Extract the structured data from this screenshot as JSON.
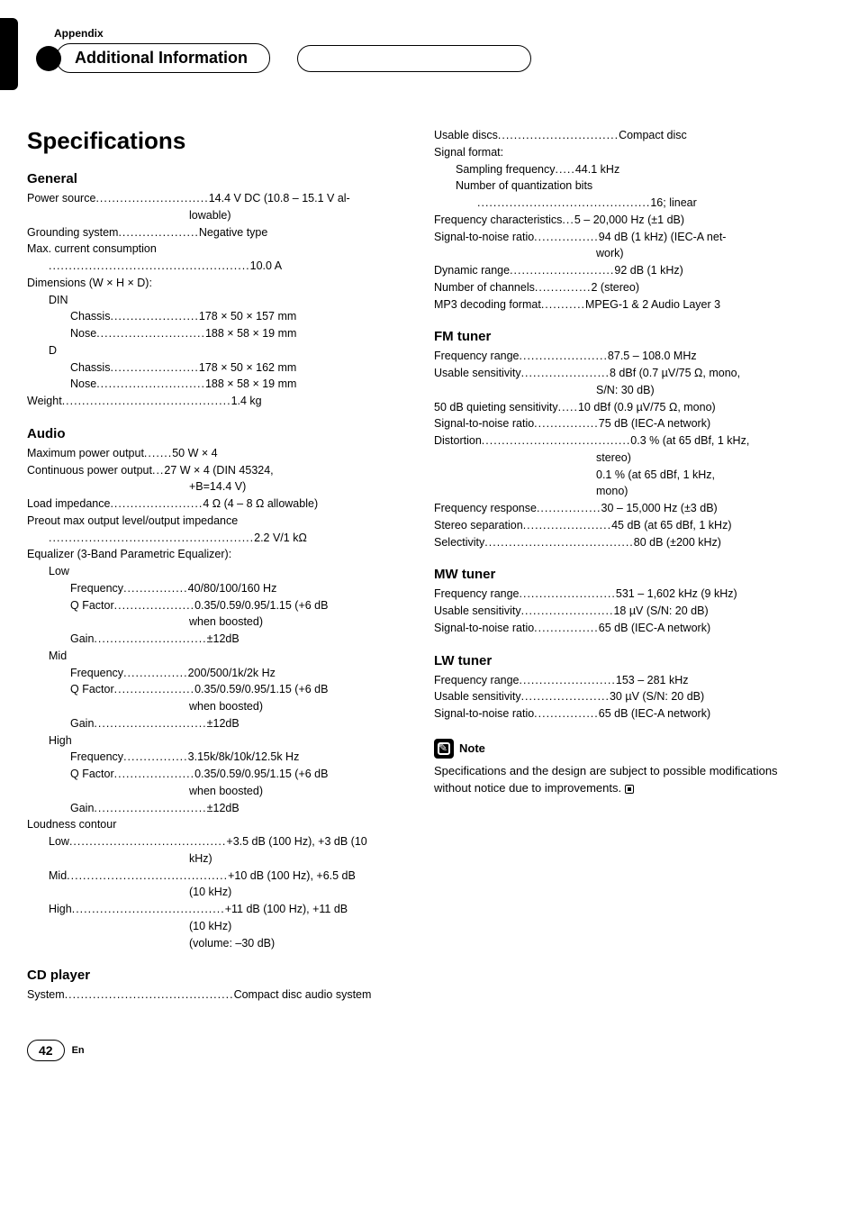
{
  "header": {
    "appendix": "Appendix",
    "title": "Additional Information"
  },
  "page_title": "Specifications",
  "left": {
    "general": {
      "heading": "General",
      "power_source_label": "Power source",
      "power_source_value": "14.4 V DC (10.8 – 15.1 V al-",
      "power_source_cont": "lowable)",
      "grounding_label": "Grounding system",
      "grounding_value": "Negative type",
      "max_current_label": "Max. current consumption",
      "max_current_value": "10.0 A",
      "dimensions_label": "Dimensions (W × H × D):",
      "din": "DIN",
      "din_chassis_label": "Chassis",
      "din_chassis_value": "178 × 50 × 157 mm",
      "din_nose_label": "Nose",
      "din_nose_value": "188 × 58 × 19 mm",
      "d": "D",
      "d_chassis_label": "Chassis",
      "d_chassis_value": "178 × 50 × 162 mm",
      "d_nose_label": "Nose",
      "d_nose_value": "188 × 58 × 19 mm",
      "weight_label": "Weight",
      "weight_value": "1.4 kg"
    },
    "audio": {
      "heading": "Audio",
      "max_power_label": "Maximum power output",
      "max_power_value": "50 W × 4",
      "cont_power_label": "Continuous power output",
      "cont_power_value": "27 W × 4 (DIN 45324,",
      "cont_power_cont": "+B=14.4 V)",
      "load_imp_label": "Load impedance",
      "load_imp_value": "4 Ω (4 – 8 Ω allowable)",
      "preout_label": "Preout max output level/output impedance",
      "preout_value": "2.2 V/1 kΩ",
      "eq_label": "Equalizer (3-Band Parametric Equalizer):",
      "low": "Low",
      "low_freq_label": "Frequency",
      "low_freq_value": "40/80/100/160 Hz",
      "low_q_label": "Q Factor",
      "low_q_value": "0.35/0.59/0.95/1.15 (+6 dB",
      "low_q_cont": "when boosted)",
      "low_gain_label": "Gain",
      "low_gain_value": "±12dB",
      "mid": "Mid",
      "mid_freq_label": "Frequency",
      "mid_freq_value": "200/500/1k/2k Hz",
      "mid_q_label": "Q Factor",
      "mid_q_value": "0.35/0.59/0.95/1.15 (+6 dB",
      "mid_q_cont": "when boosted)",
      "mid_gain_label": "Gain",
      "mid_gain_value": "±12dB",
      "high": "High",
      "high_freq_label": "Frequency",
      "high_freq_value": "3.15k/8k/10k/12.5k Hz",
      "high_q_label": "Q Factor",
      "high_q_value": "0.35/0.59/0.95/1.15 (+6 dB",
      "high_q_cont": "when boosted)",
      "high_gain_label": "Gain",
      "high_gain_value": "±12dB",
      "loudness_label": "Loudness contour",
      "loud_low_label": "Low",
      "loud_low_value": "+3.5 dB (100 Hz), +3 dB (10",
      "loud_low_cont": "kHz)",
      "loud_mid_label": "Mid",
      "loud_mid_value": "+10 dB (100 Hz), +6.5 dB",
      "loud_mid_cont": "(10 kHz)",
      "loud_high_label": "High",
      "loud_high_value": "+11 dB (100 Hz), +11 dB",
      "loud_high_cont1": "(10 kHz)",
      "loud_high_cont2": "(volume: –30 dB)"
    },
    "cd": {
      "heading": "CD player",
      "system_label": "System",
      "system_value": "Compact disc audio system"
    }
  },
  "right": {
    "cd_cont": {
      "usable_discs_label": "Usable discs",
      "usable_discs_value": "Compact disc",
      "signal_format": "Signal format:",
      "sampling_label": "Sampling frequency",
      "sampling_value": "44.1 kHz",
      "quant_label": "Number of quantization bits",
      "quant_value": "16; linear",
      "freq_char_label": "Frequency characteristics",
      "freq_char_value": "5 – 20,000 Hz (±1 dB)",
      "snr_label": "Signal-to-noise ratio",
      "snr_value": "94 dB (1 kHz) (IEC-A net-",
      "snr_cont": "work)",
      "dyn_label": "Dynamic range",
      "dyn_value": "92 dB (1 kHz)",
      "channels_label": "Number of channels",
      "channels_value": "2 (stereo)",
      "mp3_label": "MP3 decoding format",
      "mp3_value": "MPEG-1 & 2 Audio Layer 3"
    },
    "fm": {
      "heading": "FM tuner",
      "freq_range_label": "Frequency range",
      "freq_range_value": "87.5 – 108.0 MHz",
      "sens_label": "Usable sensitivity",
      "sens_value": "8 dBf (0.7 µV/75 Ω, mono,",
      "sens_cont": "S/N: 30 dB)",
      "quiet_label": "50 dB quieting sensitivity",
      "quiet_value": "10 dBf (0.9 µV/75 Ω, mono)",
      "snr_label": "Signal-to-noise ratio",
      "snr_value": "75 dB (IEC-A network)",
      "dist_label": "Distortion",
      "dist_value": "0.3 % (at 65 dBf, 1 kHz,",
      "dist_cont1": "stereo)",
      "dist_cont2": "0.1 % (at 65 dBf, 1 kHz,",
      "dist_cont3": "mono)",
      "resp_label": "Frequency response",
      "resp_value": "30 – 15,000 Hz (±3 dB)",
      "sep_label": "Stereo separation",
      "sep_value": "45 dB (at 65 dBf, 1 kHz)",
      "sel_label": "Selectivity",
      "sel_value": "80 dB (±200 kHz)"
    },
    "mw": {
      "heading": "MW tuner",
      "freq_label": "Frequency range",
      "freq_value": "531 – 1,602 kHz (9 kHz)",
      "sens_label": "Usable sensitivity",
      "sens_value": "18 µV (S/N: 20 dB)",
      "snr_label": "Signal-to-noise ratio",
      "snr_value": "65 dB (IEC-A network)"
    },
    "lw": {
      "heading": "LW tuner",
      "freq_label": "Frequency range",
      "freq_value": "153 – 281 kHz",
      "sens_label": "Usable sensitivity",
      "sens_value": "30 µV (S/N: 20 dB)",
      "snr_label": "Signal-to-noise ratio",
      "snr_value": "65 dB (IEC-A network)"
    },
    "note": {
      "label": "Note",
      "body": "Specifications and the design are subject to possible modifications without notice due to improvements."
    }
  },
  "footer": {
    "page": "42",
    "lang": "En"
  }
}
